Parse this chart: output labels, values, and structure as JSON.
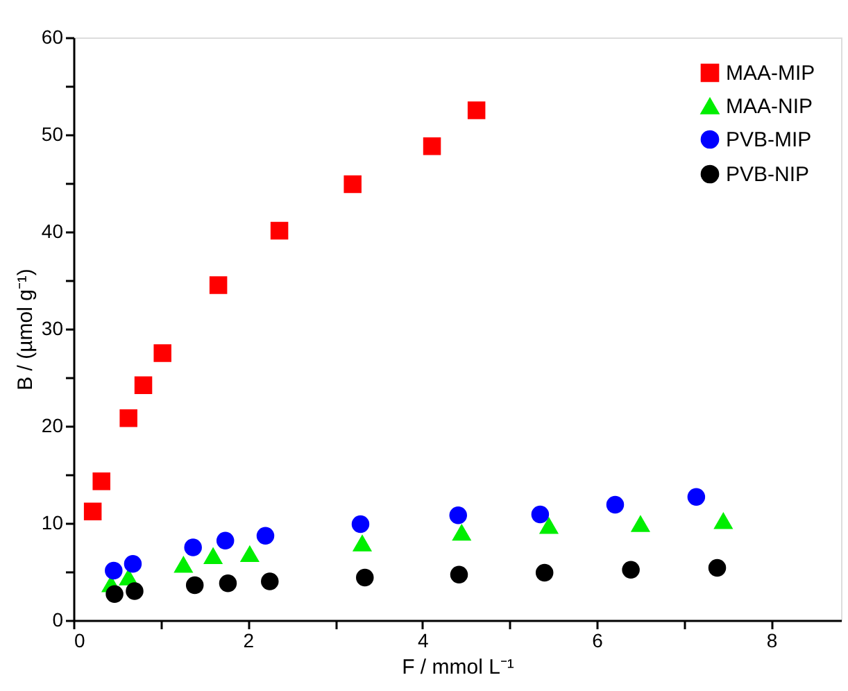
{
  "chart_data": {
    "type": "scatter",
    "xlabel": "F / mmol L⁻¹",
    "ylabel": "B / (µmol g⁻¹)",
    "xlim": [
      0,
      8.8
    ],
    "ylim": [
      0,
      60
    ],
    "xticks": [
      0,
      {
        "value": 1,
        "label": null
      },
      2,
      {
        "value": 3,
        "label": null
      },
      4,
      {
        "value": 5,
        "label": null
      },
      6,
      {
        "value": 7,
        "label": null
      },
      8
    ],
    "yticks": [
      0,
      {
        "value": 5,
        "label": null
      },
      10,
      {
        "value": 15,
        "label": null
      },
      20,
      {
        "value": 25,
        "label": null
      },
      30,
      {
        "value": 35,
        "label": null
      },
      40,
      {
        "value": 45,
        "label": null
      },
      50,
      {
        "value": 55,
        "label": null
      },
      60
    ],
    "grid": false,
    "legend": "top right",
    "series": [
      {
        "name": "MAA-MIP",
        "color": "#ff0000",
        "marker": "square",
        "x": [
          0.22,
          0.32,
          0.63,
          0.8,
          1.02,
          1.66,
          2.36,
          3.2,
          4.11,
          4.62
        ],
        "values": [
          11.2,
          14.3,
          20.8,
          24.2,
          27.5,
          34.5,
          40.1,
          44.9,
          48.8,
          52.5
        ]
      },
      {
        "name": "MAA-NIP",
        "color": "#00ee00",
        "marker": "triangle",
        "x": [
          0.43,
          0.63,
          1.26,
          1.6,
          2.02,
          3.31,
          4.45,
          5.45,
          6.5,
          7.45
        ],
        "values": [
          3.7,
          4.4,
          5.7,
          6.6,
          6.8,
          7.9,
          9.0,
          9.7,
          9.9,
          10.2
        ]
      },
      {
        "name": "PVB-MIP",
        "color": "#0000ff",
        "marker": "circle",
        "x": [
          0.46,
          0.68,
          1.37,
          1.74,
          2.2,
          3.29,
          4.41,
          5.35,
          6.21,
          7.14
        ],
        "values": [
          5.1,
          5.8,
          7.5,
          8.2,
          8.7,
          9.9,
          10.8,
          10.9,
          11.9,
          12.7
        ]
      },
      {
        "name": "PVB-NIP",
        "color": "#000000",
        "marker": "circle",
        "x": [
          0.47,
          0.7,
          1.39,
          1.77,
          2.25,
          3.34,
          4.42,
          5.4,
          6.39,
          7.38
        ],
        "values": [
          2.7,
          3.0,
          3.6,
          3.8,
          4.0,
          4.4,
          4.7,
          4.9,
          5.2,
          5.4
        ]
      }
    ]
  }
}
